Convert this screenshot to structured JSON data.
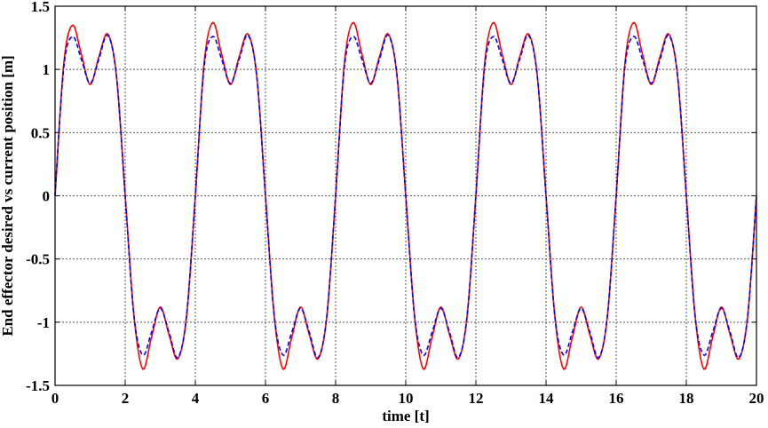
{
  "chart_data": {
    "type": "line",
    "title": "",
    "xlabel": "time [t]",
    "ylabel": "End effector desired vs current position [m]",
    "xlim": [
      0,
      20
    ],
    "ylim": [
      -1.5,
      1.5
    ],
    "xticks": [
      0,
      2,
      4,
      6,
      8,
      10,
      12,
      14,
      16,
      18,
      20
    ],
    "yticks": [
      1.5,
      1,
      0.5,
      0,
      -0.5,
      -1,
      -1.5
    ],
    "xtick_labels": [
      "0",
      "2",
      "4",
      "6",
      "8",
      "10",
      "12",
      "14",
      "16",
      "18",
      "20"
    ],
    "ytick_labels": [
      "1.5",
      "1",
      "0.5",
      "0",
      "-0.5",
      "-1",
      "-1.5"
    ],
    "grid": true,
    "series": [
      {
        "color": "#ff0000",
        "style": "solid",
        "x": [
          0,
          0.25,
          0.5,
          0.75,
          1,
          1.25,
          1.5,
          1.75,
          2,
          2.25,
          2.5,
          2.75,
          3,
          3.25,
          3.5,
          3.75,
          4,
          4.25,
          4.5,
          4.75,
          5,
          5.25,
          5.5,
          5.75,
          6,
          6.25,
          6.5,
          6.75,
          7,
          7.25,
          7.5,
          7.75,
          8,
          8.25,
          8.5,
          8.75,
          9,
          9.25,
          9.5,
          9.75,
          10,
          10.25,
          10.5,
          10.75,
          11,
          11.25,
          11.5,
          11.75,
          12,
          12.25,
          12.5,
          12.75,
          13,
          13.25,
          13.5,
          13.75,
          14,
          14.25,
          14.5,
          14.75,
          15,
          15.25,
          15.5,
          15.75,
          16,
          16.25,
          16.5,
          16.75,
          17,
          17.25,
          17.5,
          17.75,
          18,
          18.25,
          18.5,
          18.75,
          19,
          19.25,
          19.5,
          19.75,
          20
        ],
        "values": [
          0,
          1.05,
          1.35,
          1.12,
          0.88,
          1.1,
          1.28,
          0.95,
          0,
          -0.95,
          -1.37,
          -1.12,
          -0.88,
          -1.1,
          -1.29,
          -0.95,
          0,
          1.05,
          1.37,
          1.12,
          0.88,
          1.1,
          1.28,
          0.95,
          0,
          -0.95,
          -1.37,
          -1.12,
          -0.88,
          -1.1,
          -1.29,
          -0.95,
          0,
          1.05,
          1.37,
          1.12,
          0.88,
          1.1,
          1.28,
          0.95,
          0,
          -0.95,
          -1.37,
          -1.12,
          -0.88,
          -1.1,
          -1.29,
          -0.95,
          0,
          1.05,
          1.37,
          1.12,
          0.88,
          1.1,
          1.28,
          0.95,
          0,
          -0.95,
          -1.37,
          -1.12,
          -0.88,
          -1.1,
          -1.29,
          -0.95,
          0,
          1.05,
          1.37,
          1.12,
          0.88,
          1.1,
          1.28,
          0.95,
          0,
          -0.95,
          -1.37,
          -1.12,
          -0.88,
          -1.1,
          -1.29,
          -0.95,
          0
        ]
      },
      {
        "color": "#0000ff",
        "style": "dashed",
        "x": [
          0,
          0.25,
          0.5,
          0.75,
          1,
          1.25,
          1.5,
          1.75,
          2,
          2.25,
          2.5,
          2.75,
          3,
          3.25,
          3.5,
          3.75,
          4,
          4.25,
          4.5,
          4.75,
          5,
          5.25,
          5.5,
          5.75,
          6,
          6.25,
          6.5,
          6.75,
          7,
          7.25,
          7.5,
          7.75,
          8,
          8.25,
          8.5,
          8.75,
          9,
          9.25,
          9.5,
          9.75,
          10,
          10.25,
          10.5,
          10.75,
          11,
          11.25,
          11.5,
          11.75,
          12,
          12.25,
          12.5,
          12.75,
          13,
          13.25,
          13.5,
          13.75,
          14,
          14.25,
          14.5,
          14.75,
          15,
          15.25,
          15.5,
          15.75,
          16,
          16.25,
          16.5,
          16.75,
          17,
          17.25,
          17.5,
          17.75,
          18,
          18.25,
          18.5,
          18.75,
          19,
          19.25,
          19.5,
          19.75,
          20
        ],
        "values": [
          0,
          1.02,
          1.26,
          1.08,
          0.89,
          1.08,
          1.27,
          0.95,
          0,
          -0.95,
          -1.26,
          -1.08,
          -0.89,
          -1.08,
          -1.28,
          -0.95,
          0,
          1.02,
          1.26,
          1.08,
          0.89,
          1.08,
          1.27,
          0.95,
          0,
          -0.95,
          -1.26,
          -1.08,
          -0.89,
          -1.08,
          -1.28,
          -0.95,
          0,
          1.02,
          1.26,
          1.08,
          0.89,
          1.08,
          1.27,
          0.95,
          0,
          -0.95,
          -1.26,
          -1.08,
          -0.89,
          -1.08,
          -1.28,
          -0.95,
          0,
          1.02,
          1.26,
          1.08,
          0.89,
          1.08,
          1.27,
          0.95,
          0,
          -0.95,
          -1.26,
          -1.08,
          -0.89,
          -1.08,
          -1.28,
          -0.95,
          0,
          1.02,
          1.26,
          1.08,
          0.89,
          1.08,
          1.27,
          0.95,
          0,
          -0.95,
          -1.26,
          -1.08,
          -0.89,
          -1.08,
          -1.28,
          -0.95,
          0
        ]
      }
    ]
  }
}
